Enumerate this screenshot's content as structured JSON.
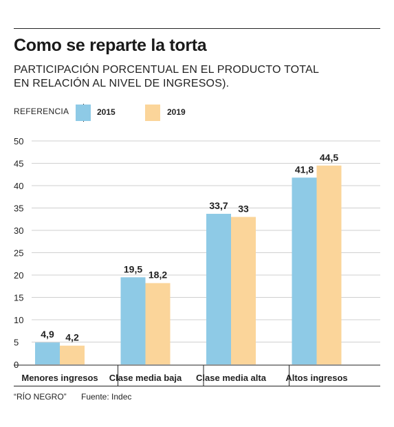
{
  "header": {
    "title": "Como se reparte la torta",
    "subtitle_line1": "PARTICIPACIÓN PORCENTUAL EN EL PRODUCTO TOTAL",
    "subtitle_line2": "EN RELACIÓN AL NIVEL DE INGRESOS)."
  },
  "legend": {
    "label": "REFERENCIA",
    "items": [
      {
        "name": "2015",
        "color": "#8ecae6"
      },
      {
        "name": "2019",
        "color": "#fbd59a"
      }
    ]
  },
  "footer": {
    "source": "“RÍO NEGRO”",
    "credit": "Fuente: Indec"
  },
  "chart_data": {
    "type": "bar",
    "title": "Como se reparte la torta",
    "subtitle": "PARTICIPACIÓN PORCENTUAL EN EL PRODUCTO TOTAL EN RELACIÓN AL NIVEL DE INGRESOS).",
    "categories": [
      "Menores ingresos",
      "Clase media baja",
      "Clase media alta",
      "Altos ingresos"
    ],
    "series": [
      {
        "name": "2015",
        "values": [
          4.9,
          19.5,
          33.7,
          41.8
        ],
        "labels": [
          "4,9",
          "19,5",
          "33,7",
          "41,8"
        ],
        "color": "#8ecae6"
      },
      {
        "name": "2019",
        "values": [
          4.2,
          18.2,
          33,
          44.5
        ],
        "labels": [
          "4,2",
          "18,2",
          "33",
          "44,5"
        ],
        "color": "#fbd59a"
      }
    ],
    "ylim": [
      0,
      50
    ],
    "yticks": [
      0,
      5,
      10,
      15,
      20,
      25,
      30,
      35,
      40,
      45,
      50
    ],
    "grid": true,
    "legend_position": "top-left"
  }
}
